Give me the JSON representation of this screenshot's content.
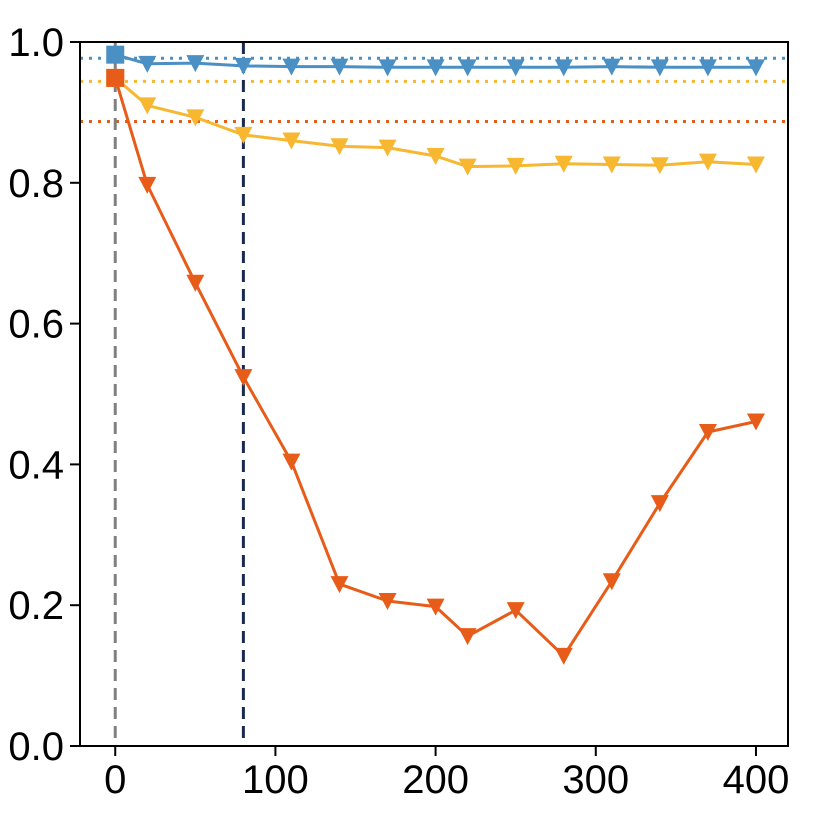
{
  "chart_data": {
    "type": "line",
    "title": "",
    "xlabel": "",
    "ylabel": "",
    "xlim": [
      -22,
      420
    ],
    "ylim": [
      0.0,
      1.0
    ],
    "x_ticks": [
      0,
      100,
      200,
      300,
      400
    ],
    "x_tick_labels": [
      "0",
      "100",
      "200",
      "300",
      "400"
    ],
    "y_ticks": [
      0.0,
      0.2,
      0.4,
      0.6,
      0.8,
      1.0
    ],
    "y_tick_labels": [
      "0.0",
      "0.2",
      "0.4",
      "0.6",
      "0.8",
      "1.0"
    ],
    "grid": false,
    "legend": "none",
    "series": [
      {
        "name": "blue",
        "color": "#4a90c4",
        "start_value": 0.982,
        "baseline": 0.977,
        "x": [
          20,
          50,
          80,
          110,
          140,
          170,
          200,
          220,
          250,
          280,
          310,
          340,
          370,
          400
        ],
        "values": [
          0.969,
          0.97,
          0.966,
          0.965,
          0.965,
          0.964,
          0.964,
          0.964,
          0.964,
          0.964,
          0.965,
          0.964,
          0.964,
          0.964
        ]
      },
      {
        "name": "yellow",
        "color": "#f7b731",
        "start_value": 0.949,
        "baseline": 0.944,
        "x": [
          20,
          50,
          80,
          110,
          140,
          170,
          200,
          220,
          250,
          280,
          310,
          340,
          370,
          400
        ],
        "values": [
          0.91,
          0.893,
          0.868,
          0.86,
          0.852,
          0.85,
          0.838,
          0.823,
          0.824,
          0.827,
          0.826,
          0.825,
          0.83,
          0.826
        ]
      },
      {
        "name": "orange",
        "color": "#e85c1a",
        "start_value": 0.949,
        "baseline": 0.887,
        "x": [
          20,
          50,
          80,
          110,
          140,
          170,
          200,
          220,
          250,
          280,
          310,
          340,
          370,
          400
        ],
        "values": [
          0.797,
          0.658,
          0.524,
          0.404,
          0.23,
          0.206,
          0.198,
          0.156,
          0.193,
          0.128,
          0.234,
          0.345,
          0.446,
          0.461
        ]
      }
    ],
    "vlines": [
      {
        "name": "gray-vline",
        "x": 0,
        "color": "#808080"
      },
      {
        "name": "navy-vline",
        "x": 80,
        "color": "#1a2a4f"
      }
    ]
  }
}
